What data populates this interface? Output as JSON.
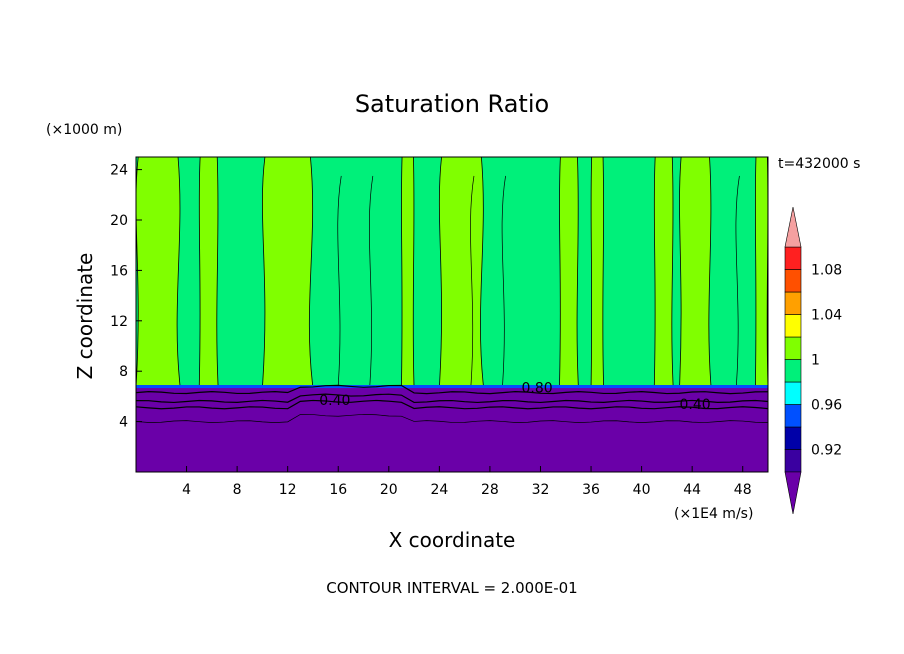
{
  "chart_data": {
    "type": "heatmap",
    "title": "Saturation Ratio",
    "xlabel": "X coordinate",
    "ylabel": "Z coordinate",
    "x_units": "(×1E4 m/s)",
    "y_units": "(×1000 m)",
    "time_label": "t=432000 s",
    "footer": "CONTOUR INTERVAL = 2.000E-01",
    "xlim": [
      0,
      50
    ],
    "ylim": [
      0,
      25
    ],
    "x_ticks": [
      4,
      8,
      12,
      16,
      20,
      24,
      28,
      32,
      36,
      40,
      44,
      48
    ],
    "y_ticks": [
      4,
      8,
      12,
      16,
      20,
      24
    ],
    "colorbar": {
      "levels": [
        0.92,
        0.94,
        0.96,
        0.98,
        1.0,
        1.02,
        1.04,
        1.06,
        1.08,
        1.1
      ],
      "colors": [
        "#3a00a0",
        "#0000a8",
        "#0050ff",
        "#00ffff",
        "#00f07a",
        "#80ff00",
        "#ffff00",
        "#ffa000",
        "#ff5000",
        "#ff2020"
      ],
      "under_color": "#6a00a8",
      "over_color": "#f5a0a0",
      "tick_labels": [
        "0.92",
        "0.96",
        "1",
        "1.04",
        "1.08"
      ]
    },
    "contour_labels": [
      "0.40",
      "0.80",
      "0.40"
    ],
    "grid": false
  }
}
